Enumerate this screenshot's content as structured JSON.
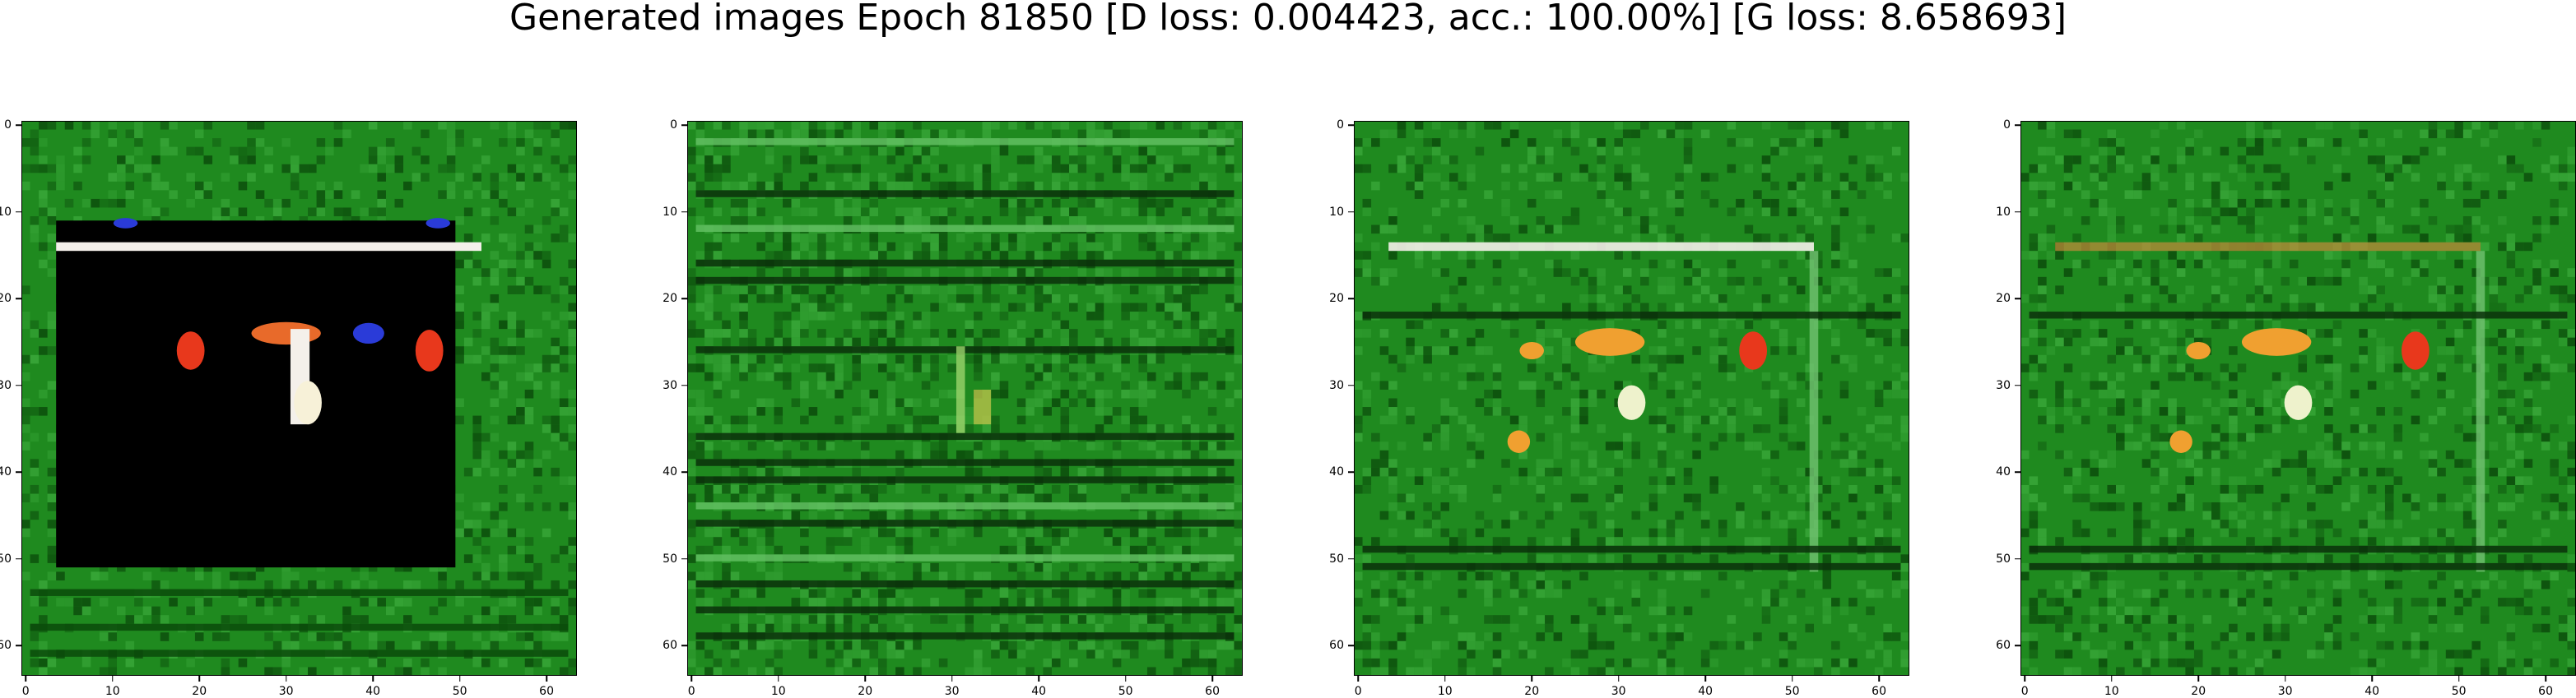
{
  "title": "Generated images Epoch 81850 [D loss: 0.004423, acc.: 100.00%] [G loss: 8.658693]",
  "axis_ticks": [
    "0",
    "10",
    "20",
    "30",
    "40",
    "50",
    "60"
  ],
  "colors": {
    "background_green": "#1f8a1f",
    "dark_green": "#0b4a0b",
    "black_region": "#000000",
    "red_blob": "#e8381c",
    "orange_blob": "#f0a030",
    "white_stripe": "#f4f0ea",
    "blue_blob": "#2a3bd8"
  },
  "panels": [
    {
      "name": "generated-image-1",
      "variant": "black-frame"
    },
    {
      "name": "generated-image-2",
      "variant": "noise-grid"
    },
    {
      "name": "generated-image-3",
      "variant": "green-items"
    },
    {
      "name": "generated-image-4",
      "variant": "green-items-faint"
    }
  ]
}
